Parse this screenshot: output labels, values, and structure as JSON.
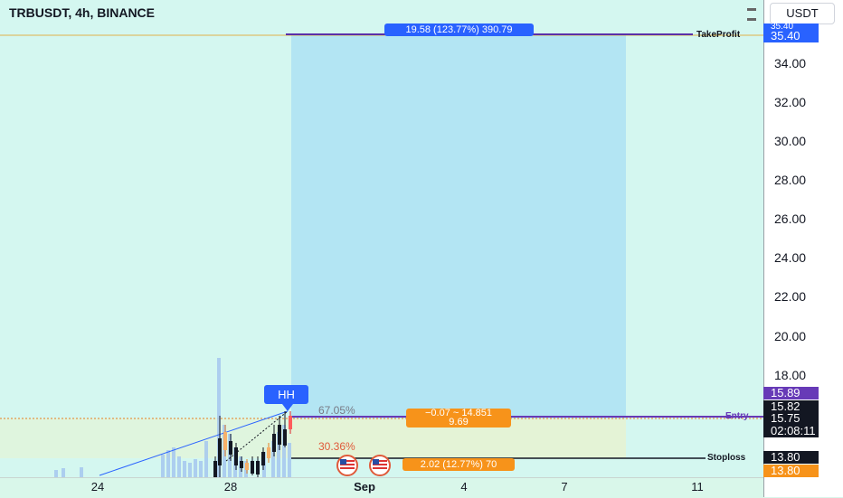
{
  "header": {
    "symbol_title": "TRBUSDT, 4h, BINANCE",
    "currency": "USDT"
  },
  "price_axis": {
    "ticks": [
      "34.00",
      "32.00",
      "30.00",
      "28.00",
      "26.00",
      "24.00",
      "22.00",
      "20.00",
      "18.00"
    ]
  },
  "time_axis": {
    "labels": [
      {
        "text": "24",
        "bold": false
      },
      {
        "text": "28",
        "bold": false
      },
      {
        "text": "Sep",
        "bold": true
      },
      {
        "text": "4",
        "bold": false
      },
      {
        "text": "7",
        "bold": false
      },
      {
        "text": "11",
        "bold": false
      }
    ]
  },
  "price_tags": {
    "top_cut": "35.40",
    "take_profit": "35.40",
    "entry_purple": "15.89",
    "last_price": "15.82",
    "current_price": "15.75",
    "countdown": "02:08:11",
    "stoploss_black": "13.80",
    "stoploss_orange": "13.80"
  },
  "colors": {
    "profit_zone": "#b3e5f3",
    "loss_zone": "#e4f3d6",
    "tp_tag": "#2962ff",
    "entry_tag": "#673ab7",
    "sl_tag": "#f7931a",
    "hh_badge": "#2962ff"
  },
  "position": {
    "target_label": "19.58 (123.77%) 390.79",
    "entry_label_line1": "−0.07 ~ 14.851",
    "entry_label_line2": "9.69",
    "stop_label": "2.02 (12.77%) 70",
    "take_profit_text": "TakeProfit",
    "entry_text": "Entry",
    "stoploss_text": "Stoploss"
  },
  "annotations": {
    "hh_badge": "HH",
    "upper_percent": "67.05%",
    "lower_percent": "30.36%"
  },
  "icons": [
    "us-flag-icon",
    "us-flag-icon"
  ]
}
